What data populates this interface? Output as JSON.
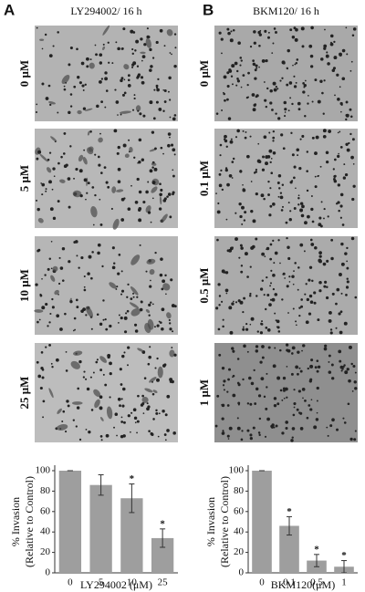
{
  "panels": [
    {
      "label": "A",
      "title": "LY294002/ 16 h",
      "image_labels": [
        "0 μM",
        "5 μM",
        "10 μM",
        "25 μM"
      ]
    },
    {
      "label": "B",
      "title": "BKM120/ 16 h",
      "image_labels": [
        "0 μM",
        "0.1 μM",
        "0.5 μM",
        "1 μM"
      ]
    }
  ],
  "chart_data": [
    {
      "type": "bar",
      "ylabel": [
        "% Invasion",
        "(Relative to Control)"
      ],
      "xlabel": "LY294002 (μM)",
      "categories": [
        "0",
        "5",
        "10",
        "25"
      ],
      "values": [
        100,
        86,
        73,
        34
      ],
      "errors": [
        0,
        10,
        14,
        9
      ],
      "significance": [
        null,
        null,
        "*",
        "*"
      ],
      "color": "#9e9e9e",
      "ylim": [
        0,
        100
      ],
      "yticks": [
        0,
        20,
        40,
        60,
        80,
        100
      ]
    },
    {
      "type": "bar",
      "ylabel": [
        "% Invasion",
        "(Relative to Control)"
      ],
      "xlabel": "BKM120(μM)",
      "categories": [
        "0",
        "0.1",
        "0.5",
        "1"
      ],
      "values": [
        100,
        46,
        12,
        6
      ],
      "errors": [
        0,
        9,
        6,
        6
      ],
      "significance": [
        null,
        "*",
        "*",
        "*"
      ],
      "color": "#9e9e9e",
      "ylim": [
        0,
        100
      ],
      "yticks": [
        0,
        20,
        40,
        60,
        80,
        100
      ]
    }
  ]
}
